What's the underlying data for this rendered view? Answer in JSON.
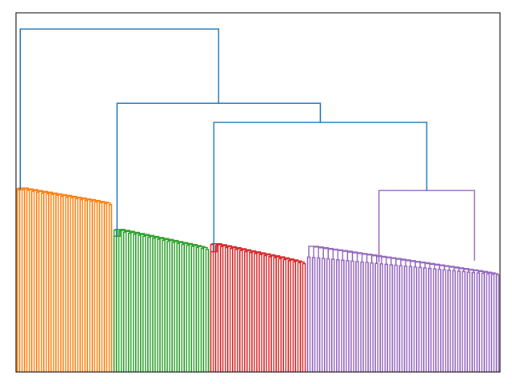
{
  "chart_data": {
    "type": "dendrogram",
    "title": "",
    "xlabel": "",
    "ylabel": "",
    "axes_ticks_visible": false,
    "grid": false,
    "leaf_count": 200,
    "ylim": [
      0,
      1.0
    ],
    "colors": {
      "above_threshold": "#1f77b4",
      "orange": "#ff7f0e",
      "green": "#2ca02c",
      "red": "#d62728",
      "purple": "#9467bd"
    },
    "clusters": [
      {
        "name": "cluster-orange",
        "color": "#ff7f0e",
        "leaf_range": [
          0,
          39
        ],
        "merge_height": 0.507,
        "max_leaf_height": 0.51,
        "min_leaf_height": 0.465
      },
      {
        "name": "cluster-green",
        "color": "#2ca02c",
        "leaf_range": [
          40,
          79
        ],
        "merge_height": 0.378,
        "max_leaf_height": 0.395,
        "min_leaf_height": 0.34
      },
      {
        "name": "cluster-red",
        "color": "#d62728",
        "leaf_range": [
          80,
          119
        ],
        "merge_height": 0.335,
        "max_leaf_height": 0.355,
        "min_leaf_height": 0.3
      },
      {
        "name": "cluster-purple",
        "color": "#9467bd",
        "leaf_range": [
          120,
          199
        ],
        "merge_height": 0.505,
        "max_leaf_height": 0.32,
        "min_leaf_height": 0.27
      }
    ],
    "top_merges": [
      {
        "name": "root",
        "height": 0.955,
        "left": "cluster-orange",
        "right": "merge-green-red-purple"
      },
      {
        "name": "merge-green-red-purple",
        "height": 0.748,
        "left": "cluster-green",
        "right": "merge-red-purple"
      },
      {
        "name": "merge-red-purple",
        "height": 0.695,
        "left": "cluster-red",
        "right": "cluster-purple"
      }
    ]
  }
}
